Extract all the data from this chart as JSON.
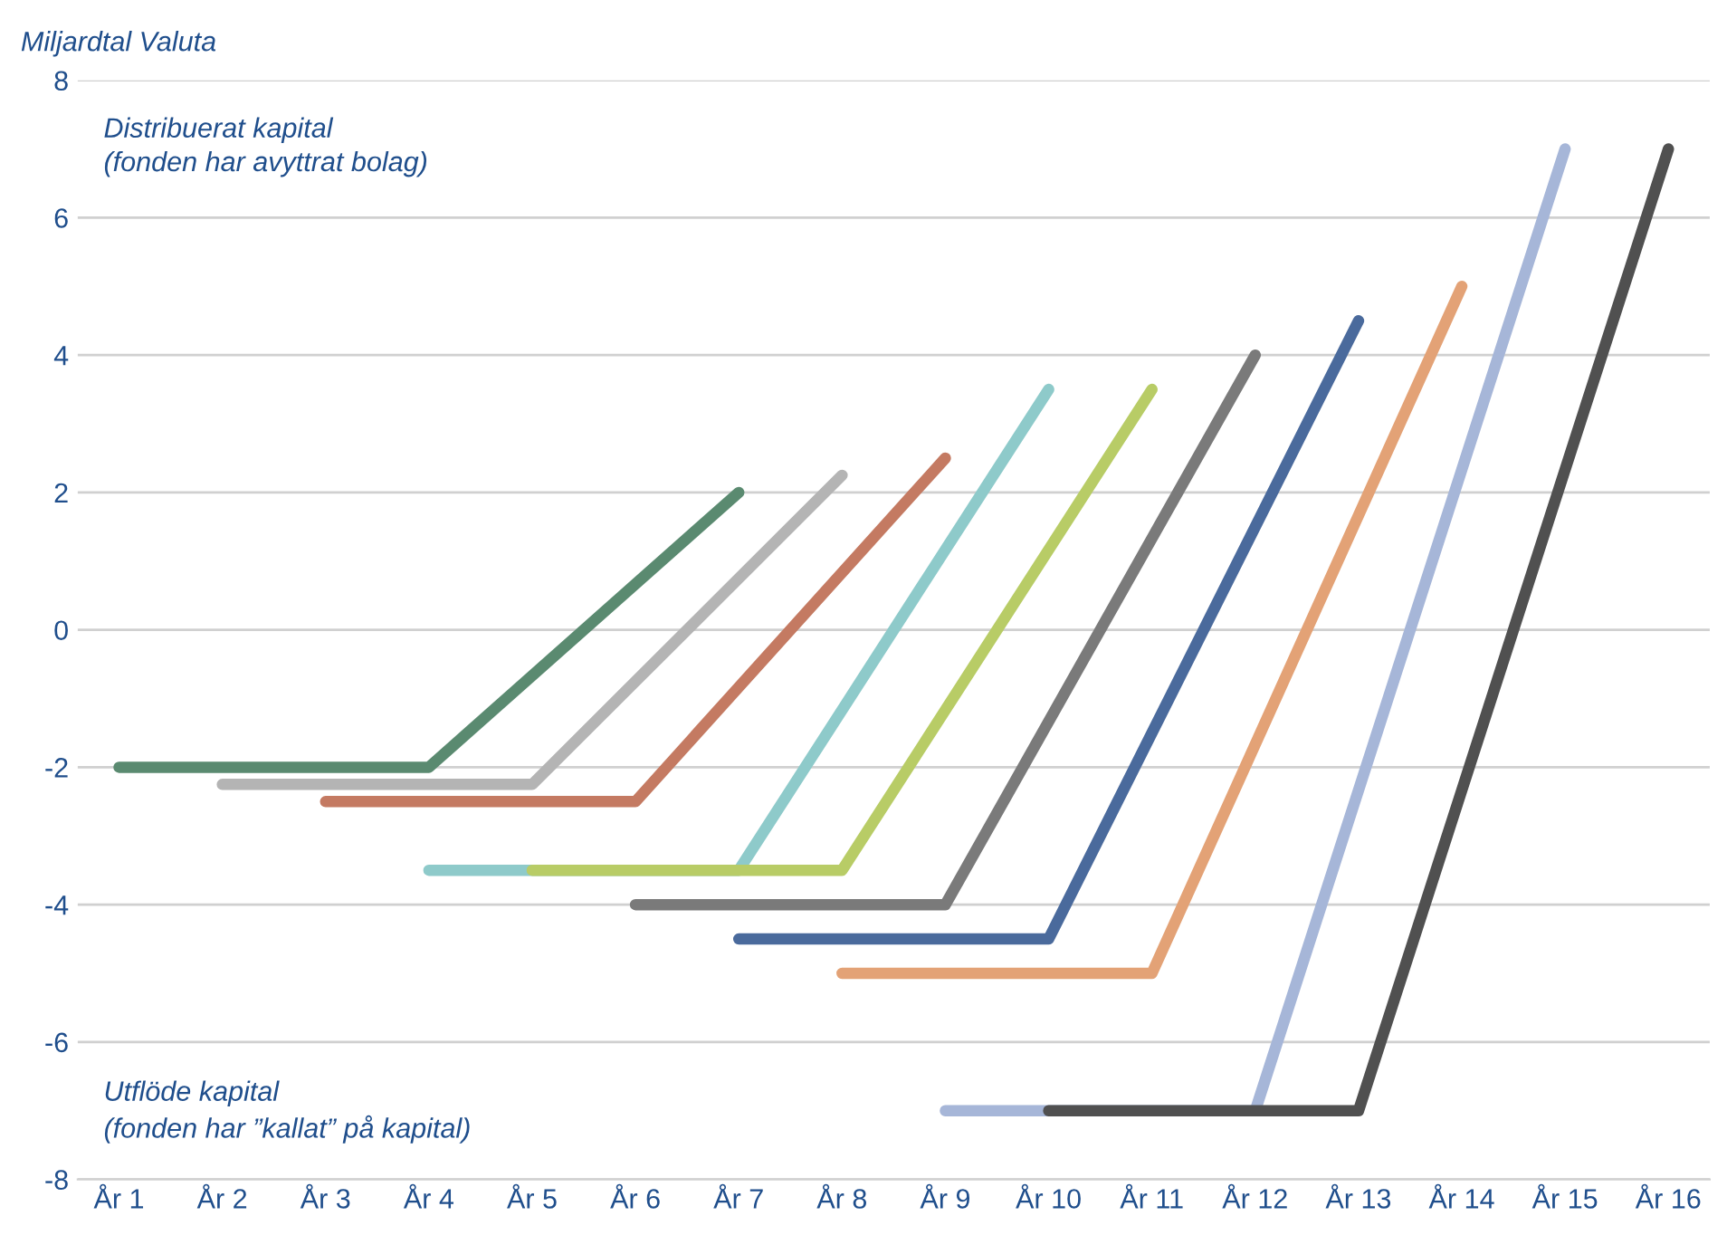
{
  "chart_data": {
    "type": "line",
    "ylabel": "Miljardtal Valuta",
    "categories": [
      "År 1",
      "År 2",
      "År 3",
      "År 4",
      "År 5",
      "År 6",
      "År 7",
      "År 8",
      "År 9",
      "År 10",
      "År 11",
      "År 12",
      "År 13",
      "År 14",
      "År 15",
      "År 16"
    ],
    "series": [
      {
        "color": "#5a8a70",
        "values": [
          -2,
          null,
          null,
          -2,
          null,
          null,
          2,
          null,
          null,
          null,
          null,
          null,
          null,
          null,
          null,
          null
        ]
      },
      {
        "color": "#b4b4b4",
        "values": [
          null,
          -2.25,
          null,
          null,
          -2.25,
          null,
          null,
          2.25,
          null,
          null,
          null,
          null,
          null,
          null,
          null,
          null
        ]
      },
      {
        "color": "#c47a62",
        "values": [
          null,
          null,
          -2.5,
          null,
          null,
          -2.5,
          null,
          null,
          2.5,
          null,
          null,
          null,
          null,
          null,
          null,
          null
        ]
      },
      {
        "color": "#8ecaca",
        "values": [
          null,
          null,
          null,
          -3.5,
          null,
          null,
          -3.5,
          null,
          null,
          3.5,
          null,
          null,
          null,
          null,
          null,
          null
        ]
      },
      {
        "color": "#b8cc66",
        "values": [
          null,
          null,
          null,
          null,
          -3.5,
          null,
          null,
          -3.5,
          null,
          null,
          3.5,
          null,
          null,
          null,
          null,
          null
        ]
      },
      {
        "color": "#7a7a7a",
        "values": [
          null,
          null,
          null,
          null,
          null,
          -4,
          null,
          null,
          -4,
          null,
          null,
          4,
          null,
          null,
          null,
          null
        ]
      },
      {
        "color": "#4a6a9c",
        "values": [
          null,
          null,
          null,
          null,
          null,
          null,
          -4.5,
          null,
          null,
          -4.5,
          null,
          null,
          4.5,
          null,
          null,
          null
        ]
      },
      {
        "color": "#e3a276",
        "values": [
          null,
          null,
          null,
          null,
          null,
          null,
          null,
          -5,
          null,
          null,
          -5,
          null,
          null,
          5,
          null,
          null
        ]
      },
      {
        "color": "#a6b6d8",
        "values": [
          null,
          null,
          null,
          null,
          null,
          null,
          null,
          null,
          -7,
          null,
          null,
          -7,
          null,
          null,
          7,
          null
        ]
      },
      {
        "color": "#505050",
        "values": [
          null,
          null,
          null,
          null,
          null,
          null,
          null,
          null,
          null,
          -7,
          null,
          null,
          -7,
          null,
          null,
          7
        ]
      }
    ],
    "ylim": [
      -8,
      8
    ],
    "yticks": [
      -8,
      -6,
      -4,
      -2,
      0,
      2,
      4,
      6,
      8
    ],
    "grid": "y",
    "legend": false,
    "marker": "none",
    "line_style": "solid",
    "annotations": [
      "Distribuerat kapital\n(fonden har avyttrat bolag)",
      "Utflöde kapital\n(fonden har ”kallat” på kapital)"
    ]
  }
}
